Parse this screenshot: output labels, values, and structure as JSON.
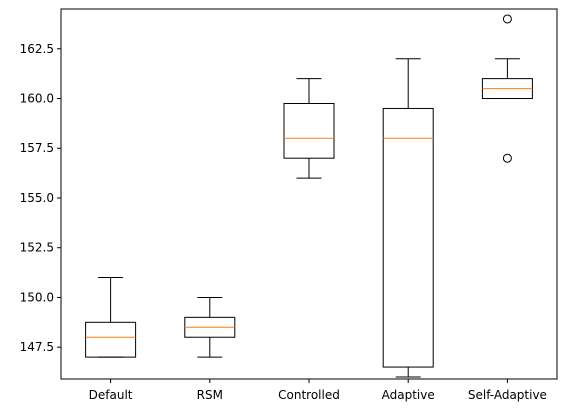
{
  "chart_data": {
    "type": "box",
    "title": "",
    "xlabel": "",
    "ylabel": "",
    "categories": [
      "Default",
      "RSM",
      "Controlled",
      "Adaptive",
      "Self-Adaptive"
    ],
    "ylim": [
      145.9,
      164.5
    ],
    "yticks": [
      147.5,
      150.0,
      152.5,
      155.0,
      157.5,
      160.0,
      162.5
    ],
    "ytick_labels": [
      "147.5",
      "150.0",
      "152.5",
      "155.0",
      "157.5",
      "160.0",
      "162.5"
    ],
    "grid": false,
    "legend": "none",
    "boxes": [
      {
        "name": "Default",
        "whisker_low": 147,
        "q1": 147,
        "median": 148,
        "q3": 148.75,
        "whisker_high": 151,
        "outliers": []
      },
      {
        "name": "RSM",
        "whisker_low": 147,
        "q1": 148,
        "median": 148.5,
        "q3": 149,
        "whisker_high": 150,
        "outliers": []
      },
      {
        "name": "Controlled",
        "whisker_low": 156,
        "q1": 157,
        "median": 158,
        "q3": 159.75,
        "whisker_high": 161,
        "outliers": []
      },
      {
        "name": "Adaptive",
        "whisker_low": 146,
        "q1": 146.5,
        "median": 158,
        "q3": 159.5,
        "whisker_high": 162,
        "outliers": []
      },
      {
        "name": "Self-Adaptive",
        "whisker_low": 160,
        "q1": 160,
        "median": 160.5,
        "q3": 161,
        "whisker_high": 162,
        "outliers": [
          164,
          157
        ]
      }
    ],
    "colors": {
      "box": "#000000",
      "median": "#ff7f0e",
      "outlier": "#000000"
    }
  }
}
